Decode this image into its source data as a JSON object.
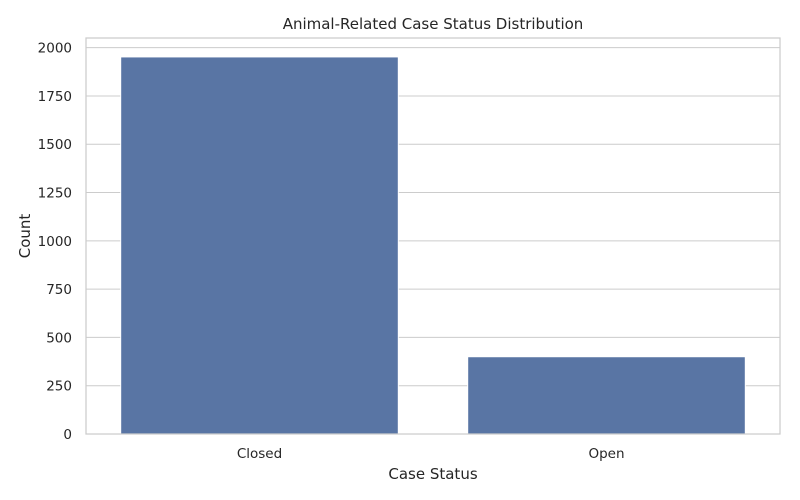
{
  "chart_data": {
    "type": "bar",
    "title": "Animal-Related Case Status Distribution",
    "xlabel": "Case Status",
    "ylabel": "Count",
    "categories": [
      "Closed",
      "Open"
    ],
    "values": [
      1952,
      400
    ],
    "ylim": [
      0,
      2050
    ],
    "yticks": [
      0,
      250,
      500,
      750,
      1000,
      1250,
      1500,
      1750,
      2000
    ],
    "grid": true,
    "bar_color": "#5975a4"
  }
}
